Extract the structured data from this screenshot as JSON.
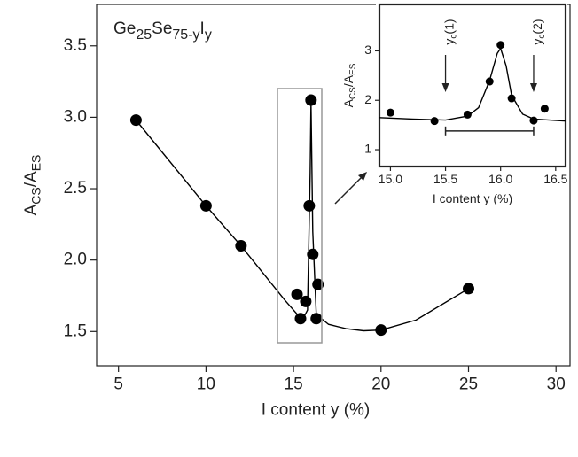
{
  "chart_data": [
    {
      "type": "scatter",
      "title": [
        "Ge",
        "25",
        "Se",
        "75-y",
        "I",
        "y"
      ],
      "x_label": "I content y (%)",
      "y_label": [
        "A",
        "CS",
        "/A",
        "ES"
      ],
      "xlim": [
        3.75,
        30.8
      ],
      "ylim": [
        1.26,
        3.79
      ],
      "xticks": [
        5,
        10,
        15,
        20,
        25,
        30
      ],
      "yticks": [
        {
          "value": 1.5,
          "label": "1.5"
        },
        {
          "value": 2,
          "label": "2.0"
        },
        {
          "value": 2.5,
          "label": "2.5"
        },
        {
          "value": 3,
          "label": "3.0"
        },
        {
          "value": 3.5,
          "label": "3.5"
        }
      ],
      "series": [
        {
          "type": "scatter",
          "color": "#000000",
          "x": [
            6,
            10,
            12,
            15.2,
            15.4,
            15.7,
            15.9,
            16.0,
            16.1,
            16.3,
            16.4,
            20,
            25
          ],
          "values": [
            2.98,
            2.38,
            2.1,
            1.76,
            1.59,
            1.71,
            2.38,
            3.12,
            2.04,
            1.59,
            1.83,
            1.51,
            1.8
          ]
        },
        {
          "type": "line",
          "color": "#000000",
          "x": [
            6,
            10,
            12,
            14.5,
            15.5,
            15.8,
            15.95,
            16.0,
            16.1,
            16.3,
            17,
            18,
            19,
            20,
            22,
            25
          ],
          "values": [
            2.98,
            2.38,
            2.1,
            1.72,
            1.58,
            1.65,
            2.6,
            3.1,
            2.2,
            1.62,
            1.55,
            1.52,
            1.505,
            1.51,
            1.58,
            1.8
          ]
        }
      ]
    },
    {
      "type": "scatter",
      "x_label": "I content y (%)",
      "y_label": [
        "A",
        "CS",
        "/A",
        "ES"
      ],
      "xlim": [
        14.9,
        16.59
      ],
      "ylim": [
        0.66,
        3.94
      ],
      "xticks": [
        {
          "value": 15,
          "label": "15.0"
        },
        {
          "value": 15.5,
          "label": "15.5"
        },
        {
          "value": 16,
          "label": "16.0"
        },
        {
          "value": 16.5,
          "label": "16.5"
        }
      ],
      "yticks": [
        1,
        2,
        3
      ],
      "annotations": [
        {
          "text": [
            "y",
            "c",
            "(1)"
          ],
          "x": 15.5
        },
        {
          "text": [
            "y",
            "c",
            "(2)"
          ],
          "x": 16.3
        }
      ],
      "range_bar": {
        "x": [
          15.5,
          16.3
        ],
        "y": 1.38
      },
      "series": [
        {
          "type": "scatter",
          "color": "#000000",
          "x": [
            15.0,
            15.4,
            15.7,
            15.9,
            16.0,
            16.1,
            16.3,
            16.4
          ],
          "values": [
            1.75,
            1.58,
            1.71,
            2.38,
            3.12,
            2.04,
            1.59,
            1.83
          ]
        },
        {
          "type": "line",
          "color": "#000000",
          "x": [
            14.9,
            15.2,
            15.5,
            15.7,
            15.8,
            15.9,
            15.97,
            16.0,
            16.05,
            16.1,
            16.2,
            16.3,
            16.59
          ],
          "values": [
            1.65,
            1.62,
            1.6,
            1.68,
            1.85,
            2.4,
            2.95,
            3.05,
            2.7,
            2.1,
            1.72,
            1.62,
            1.58
          ]
        }
      ]
    }
  ]
}
